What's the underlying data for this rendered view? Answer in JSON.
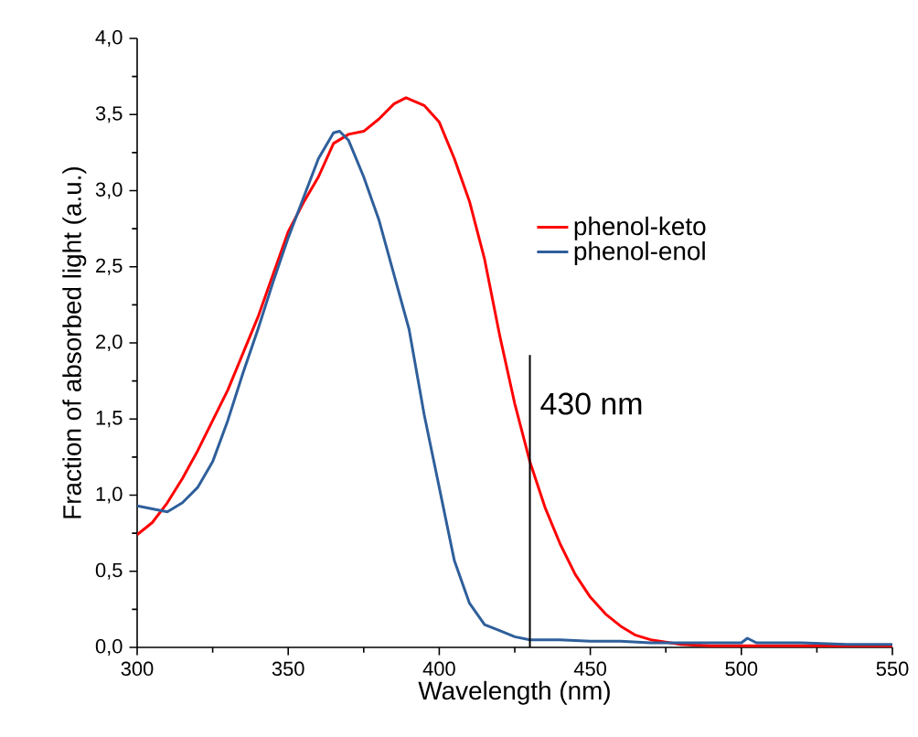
{
  "chart_data": {
    "type": "line",
    "xlabel": "Wavelength (nm)",
    "ylabel": "Fraction of absorbed light (a.u.)",
    "xlim": [
      300,
      550
    ],
    "xticks": [
      300,
      350,
      400,
      450,
      500,
      550
    ],
    "ylim": [
      0,
      4
    ],
    "yticks": [
      {
        "value": 0,
        "label": "0,0"
      },
      {
        "value": 0.5,
        "label": "0,5"
      },
      {
        "value": 1,
        "label": "1,0"
      },
      {
        "value": 1.5,
        "label": "1,5"
      },
      {
        "value": 2,
        "label": "2,0"
      },
      {
        "value": 2.5,
        "label": "2,5"
      },
      {
        "value": 3,
        "label": "3,0"
      },
      {
        "value": 3.5,
        "label": "3,5"
      },
      {
        "value": 4,
        "label": "4,0"
      }
    ],
    "legend": "right",
    "grid": false,
    "marker": "none",
    "line_style": "solid",
    "ref_lines": [
      {
        "axis": "x",
        "value": 430,
        "label": "430 nm",
        "color": "#000000"
      }
    ],
    "series": [
      {
        "name": "phenol-keto",
        "color": "#ff0000",
        "x": [
          300,
          305,
          310,
          315,
          320,
          325,
          330,
          335,
          340,
          345,
          350,
          355,
          360,
          365,
          370,
          375,
          380,
          385,
          389,
          395,
          400,
          405,
          410,
          415,
          420,
          425,
          430,
          435,
          440,
          445,
          450,
          455,
          460,
          465,
          470,
          480,
          490,
          500,
          520,
          550
        ],
        "values": [
          0.74,
          0.82,
          0.95,
          1.11,
          1.29,
          1.49,
          1.69,
          1.93,
          2.17,
          2.45,
          2.73,
          2.92,
          3.09,
          3.31,
          3.37,
          3.39,
          3.47,
          3.57,
          3.61,
          3.56,
          3.45,
          3.21,
          2.93,
          2.55,
          2.05,
          1.6,
          1.22,
          0.92,
          0.68,
          0.48,
          0.33,
          0.22,
          0.14,
          0.08,
          0.05,
          0.02,
          0.01,
          0.01,
          0.01,
          0.01
        ]
      },
      {
        "name": "phenol-enol",
        "color": "#2e5f9b",
        "x": [
          300,
          305,
          310,
          315,
          320,
          325,
          330,
          335,
          340,
          345,
          350,
          355,
          360,
          365,
          367,
          370,
          375,
          380,
          385,
          390,
          395,
          400,
          405,
          410,
          415,
          420,
          425,
          430,
          440,
          450,
          460,
          470,
          480,
          490,
          500,
          502,
          505,
          520,
          535,
          550
        ],
        "values": [
          0.93,
          0.91,
          0.89,
          0.95,
          1.05,
          1.22,
          1.49,
          1.8,
          2.09,
          2.4,
          2.69,
          2.95,
          3.21,
          3.38,
          3.39,
          3.33,
          3.09,
          2.81,
          2.45,
          2.09,
          1.53,
          1.05,
          0.57,
          0.29,
          0.15,
          0.11,
          0.07,
          0.05,
          0.05,
          0.04,
          0.04,
          0.03,
          0.03,
          0.03,
          0.03,
          0.06,
          0.03,
          0.03,
          0.02,
          0.02
        ]
      }
    ]
  }
}
